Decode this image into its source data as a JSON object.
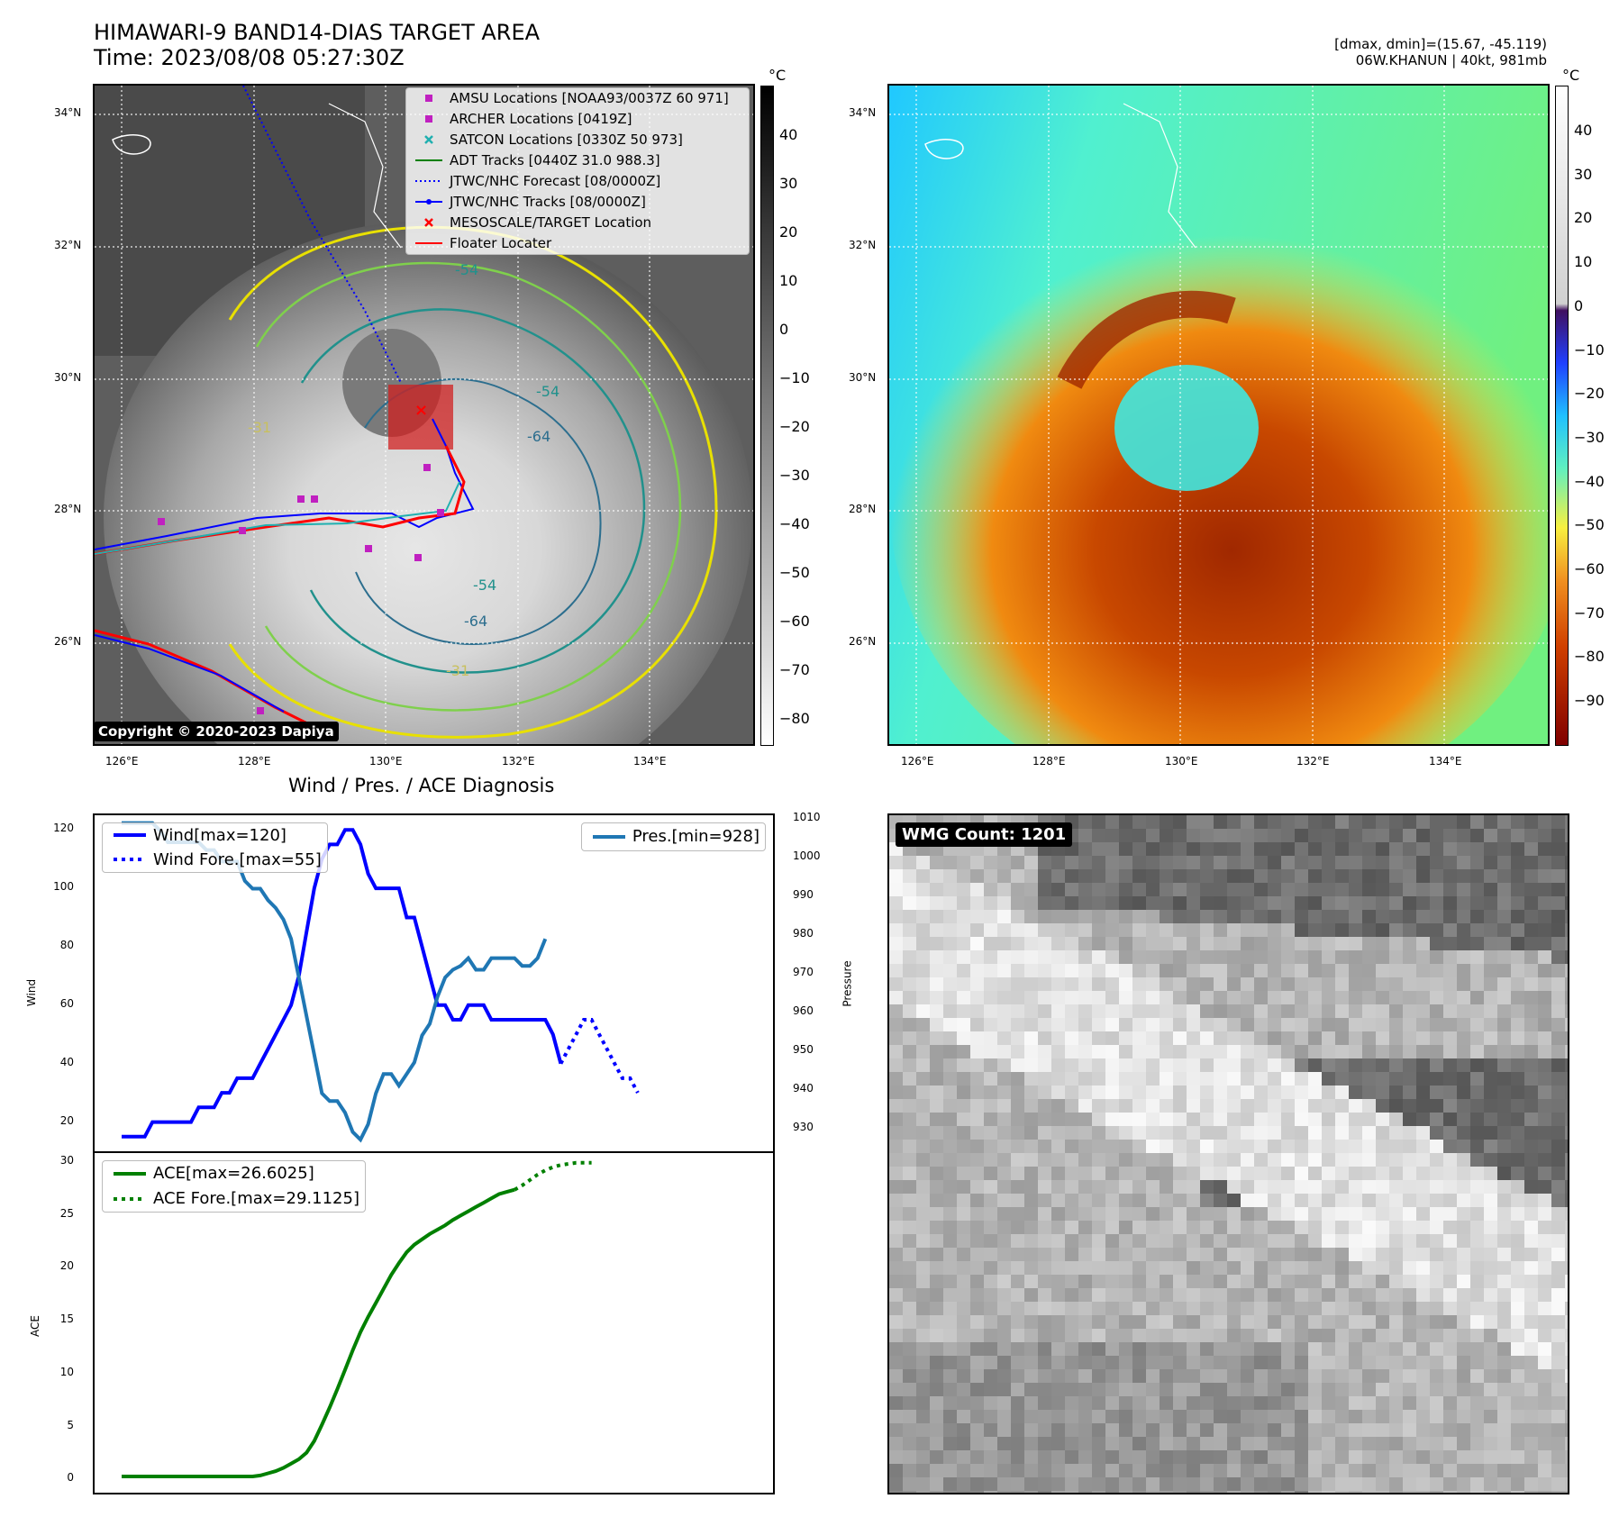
{
  "header": {
    "title_line1": "HIMAWARI-9 BAND14-DIAS TARGET AREA",
    "title_line2": "Time: 2023/08/08 05:27:30Z",
    "info_line1": "[dmax, dmin]=(15.67, -45.119)",
    "info_line2": "06W.KHANUN | 40kt, 981mb"
  },
  "map_left": {
    "lat_labels": [
      "34°N",
      "32°N",
      "30°N",
      "28°N",
      "26°N"
    ],
    "lon_labels": [
      "126°E",
      "128°E",
      "130°E",
      "132°E",
      "134°E"
    ],
    "legend": [
      {
        "label": "AMSU Locations [NOAA93/0037Z 60 971]",
        "symbol": "square",
        "color": "#c020c0"
      },
      {
        "label": "ARCHER Locations [0419Z]",
        "symbol": "square",
        "color": "#c020c0"
      },
      {
        "label": "SATCON Locations [0330Z 50 973]",
        "symbol": "x",
        "color": "#20b0b0"
      },
      {
        "label": "ADT Tracks [0440Z 31.0 988.3]",
        "symbol": "line",
        "color": "#008000"
      },
      {
        "label": "JTWC/NHC Forecast [08/0000Z]",
        "symbol": "dotted",
        "color": "#0000ff"
      },
      {
        "label": "JTWC/NHC Tracks [08/0000Z]",
        "symbol": "line-dot",
        "color": "#0000ff"
      },
      {
        "label": "MESOSCALE/TARGET Location",
        "symbol": "x",
        "color": "#ff0000"
      },
      {
        "label": "Floater Locater",
        "symbol": "line",
        "color": "#ff0000"
      }
    ],
    "contour_labels": [
      "-54",
      "-54",
      "-64",
      "-31",
      "-64",
      "-54",
      "-64",
      "-31"
    ],
    "copyright": "Copyright © 2020-2023 Dapiya",
    "colorbar": {
      "unit": "°C",
      "ticks": [
        "40",
        "30",
        "20",
        "10",
        "0",
        "−10",
        "−20",
        "−30",
        "−40",
        "−50",
        "−60",
        "−70",
        "−80"
      ]
    }
  },
  "map_right": {
    "lat_labels": [
      "34°N",
      "32°N",
      "30°N",
      "28°N",
      "26°N"
    ],
    "lon_labels": [
      "126°E",
      "128°E",
      "130°E",
      "132°E",
      "134°E"
    ],
    "colorbar": {
      "unit": "°C",
      "ticks": [
        "40",
        "30",
        "20",
        "10",
        "0",
        "−10",
        "−20",
        "−30",
        "−40",
        "−50",
        "−60",
        "−70",
        "−80",
        "−90"
      ]
    }
  },
  "diagnosis": {
    "title": "Wind / Pres. / ACE Diagnosis",
    "wind_ylabel": "Wind",
    "pres_ylabel": "Pressure",
    "ace_ylabel": "ACE",
    "wind_legend": [
      "Wind[max=120]",
      "Wind Fore.[max=55]"
    ],
    "pres_legend": [
      "Pres.[min=928]"
    ],
    "ace_legend": [
      "ACE[max=26.6025]",
      "ACE Fore.[max=29.1125]"
    ],
    "wind_ticks": [
      "120",
      "100",
      "80",
      "60",
      "40",
      "20"
    ],
    "pres_ticks": [
      "1010",
      "1000",
      "990",
      "980",
      "970",
      "960",
      "950",
      "940",
      "930"
    ],
    "ace_ticks": [
      "30",
      "25",
      "20",
      "15",
      "10",
      "5",
      "0"
    ]
  },
  "wmg": {
    "label": "WMG Count: 1201"
  },
  "chart_data": [
    {
      "type": "line",
      "name": "wind-pressure",
      "series": [
        {
          "name": "Wind[max=120]",
          "axis": "left",
          "color": "#0000ff",
          "style": "solid",
          "values": [
            15,
            15,
            15,
            15,
            20,
            20,
            20,
            20,
            20,
            20,
            25,
            25,
            25,
            30,
            30,
            35,
            35,
            35,
            40,
            45,
            50,
            55,
            60,
            70,
            85,
            100,
            110,
            115,
            115,
            120,
            120,
            115,
            105,
            100,
            100,
            100,
            100,
            90,
            90,
            80,
            70,
            60,
            60,
            55,
            55,
            60,
            60,
            60,
            55,
            55,
            55,
            55,
            55,
            55,
            55,
            55,
            50,
            40
          ]
        },
        {
          "name": "Wind Fore.[max=55]",
          "axis": "left",
          "color": "#0000ff",
          "style": "dotted",
          "x_start": 57,
          "values": [
            40,
            45,
            50,
            55,
            55,
            50,
            45,
            40,
            35,
            35,
            30
          ]
        },
        {
          "name": "Pres.[min=928]",
          "axis": "right",
          "color": "#1f77b4",
          "style": "solid",
          "values": [
            1010,
            1010,
            1010,
            1010,
            1010,
            1008,
            1005,
            1005,
            1005,
            1005,
            1005,
            1003,
            1003,
            1000,
            1000,
            1000,
            995,
            993,
            993,
            990,
            988,
            985,
            980,
            970,
            960,
            950,
            940,
            938,
            938,
            935,
            930,
            928,
            932,
            940,
            945,
            945,
            942,
            945,
            948,
            955,
            958,
            965,
            970,
            972,
            973,
            975,
            972,
            972,
            975,
            975,
            975,
            975,
            973,
            973,
            975,
            980
          ]
        }
      ],
      "wind_ylim": [
        10,
        125
      ],
      "pres_ylim": [
        925,
        1012
      ]
    },
    {
      "type": "line",
      "name": "ace",
      "series": [
        {
          "name": "ACE[max=26.6025]",
          "color": "#008000",
          "style": "solid",
          "values": [
            0,
            0,
            0,
            0,
            0,
            0,
            0,
            0,
            0,
            0,
            0,
            0,
            0,
            0,
            0,
            0,
            0,
            0,
            0.1,
            0.3,
            0.5,
            0.8,
            1.2,
            1.6,
            2.2,
            3.3,
            4.8,
            6.4,
            8.1,
            9.9,
            11.7,
            13.4,
            14.8,
            16.1,
            17.4,
            18.7,
            19.8,
            20.8,
            21.5,
            22.0,
            22.5,
            22.9,
            23.3,
            23.8,
            24.2,
            24.6,
            25.0,
            25.4,
            25.8,
            26.2,
            26.4,
            26.6
          ]
        },
        {
          "name": "ACE Fore.[max=29.1125]",
          "color": "#008000",
          "style": "dotted",
          "x_start": 51,
          "values": [
            26.6,
            27.0,
            27.5,
            28.0,
            28.4,
            28.7,
            28.9,
            29.0,
            29.1,
            29.1,
            29.1
          ]
        }
      ],
      "ylim": [
        -1.5,
        30
      ]
    }
  ]
}
